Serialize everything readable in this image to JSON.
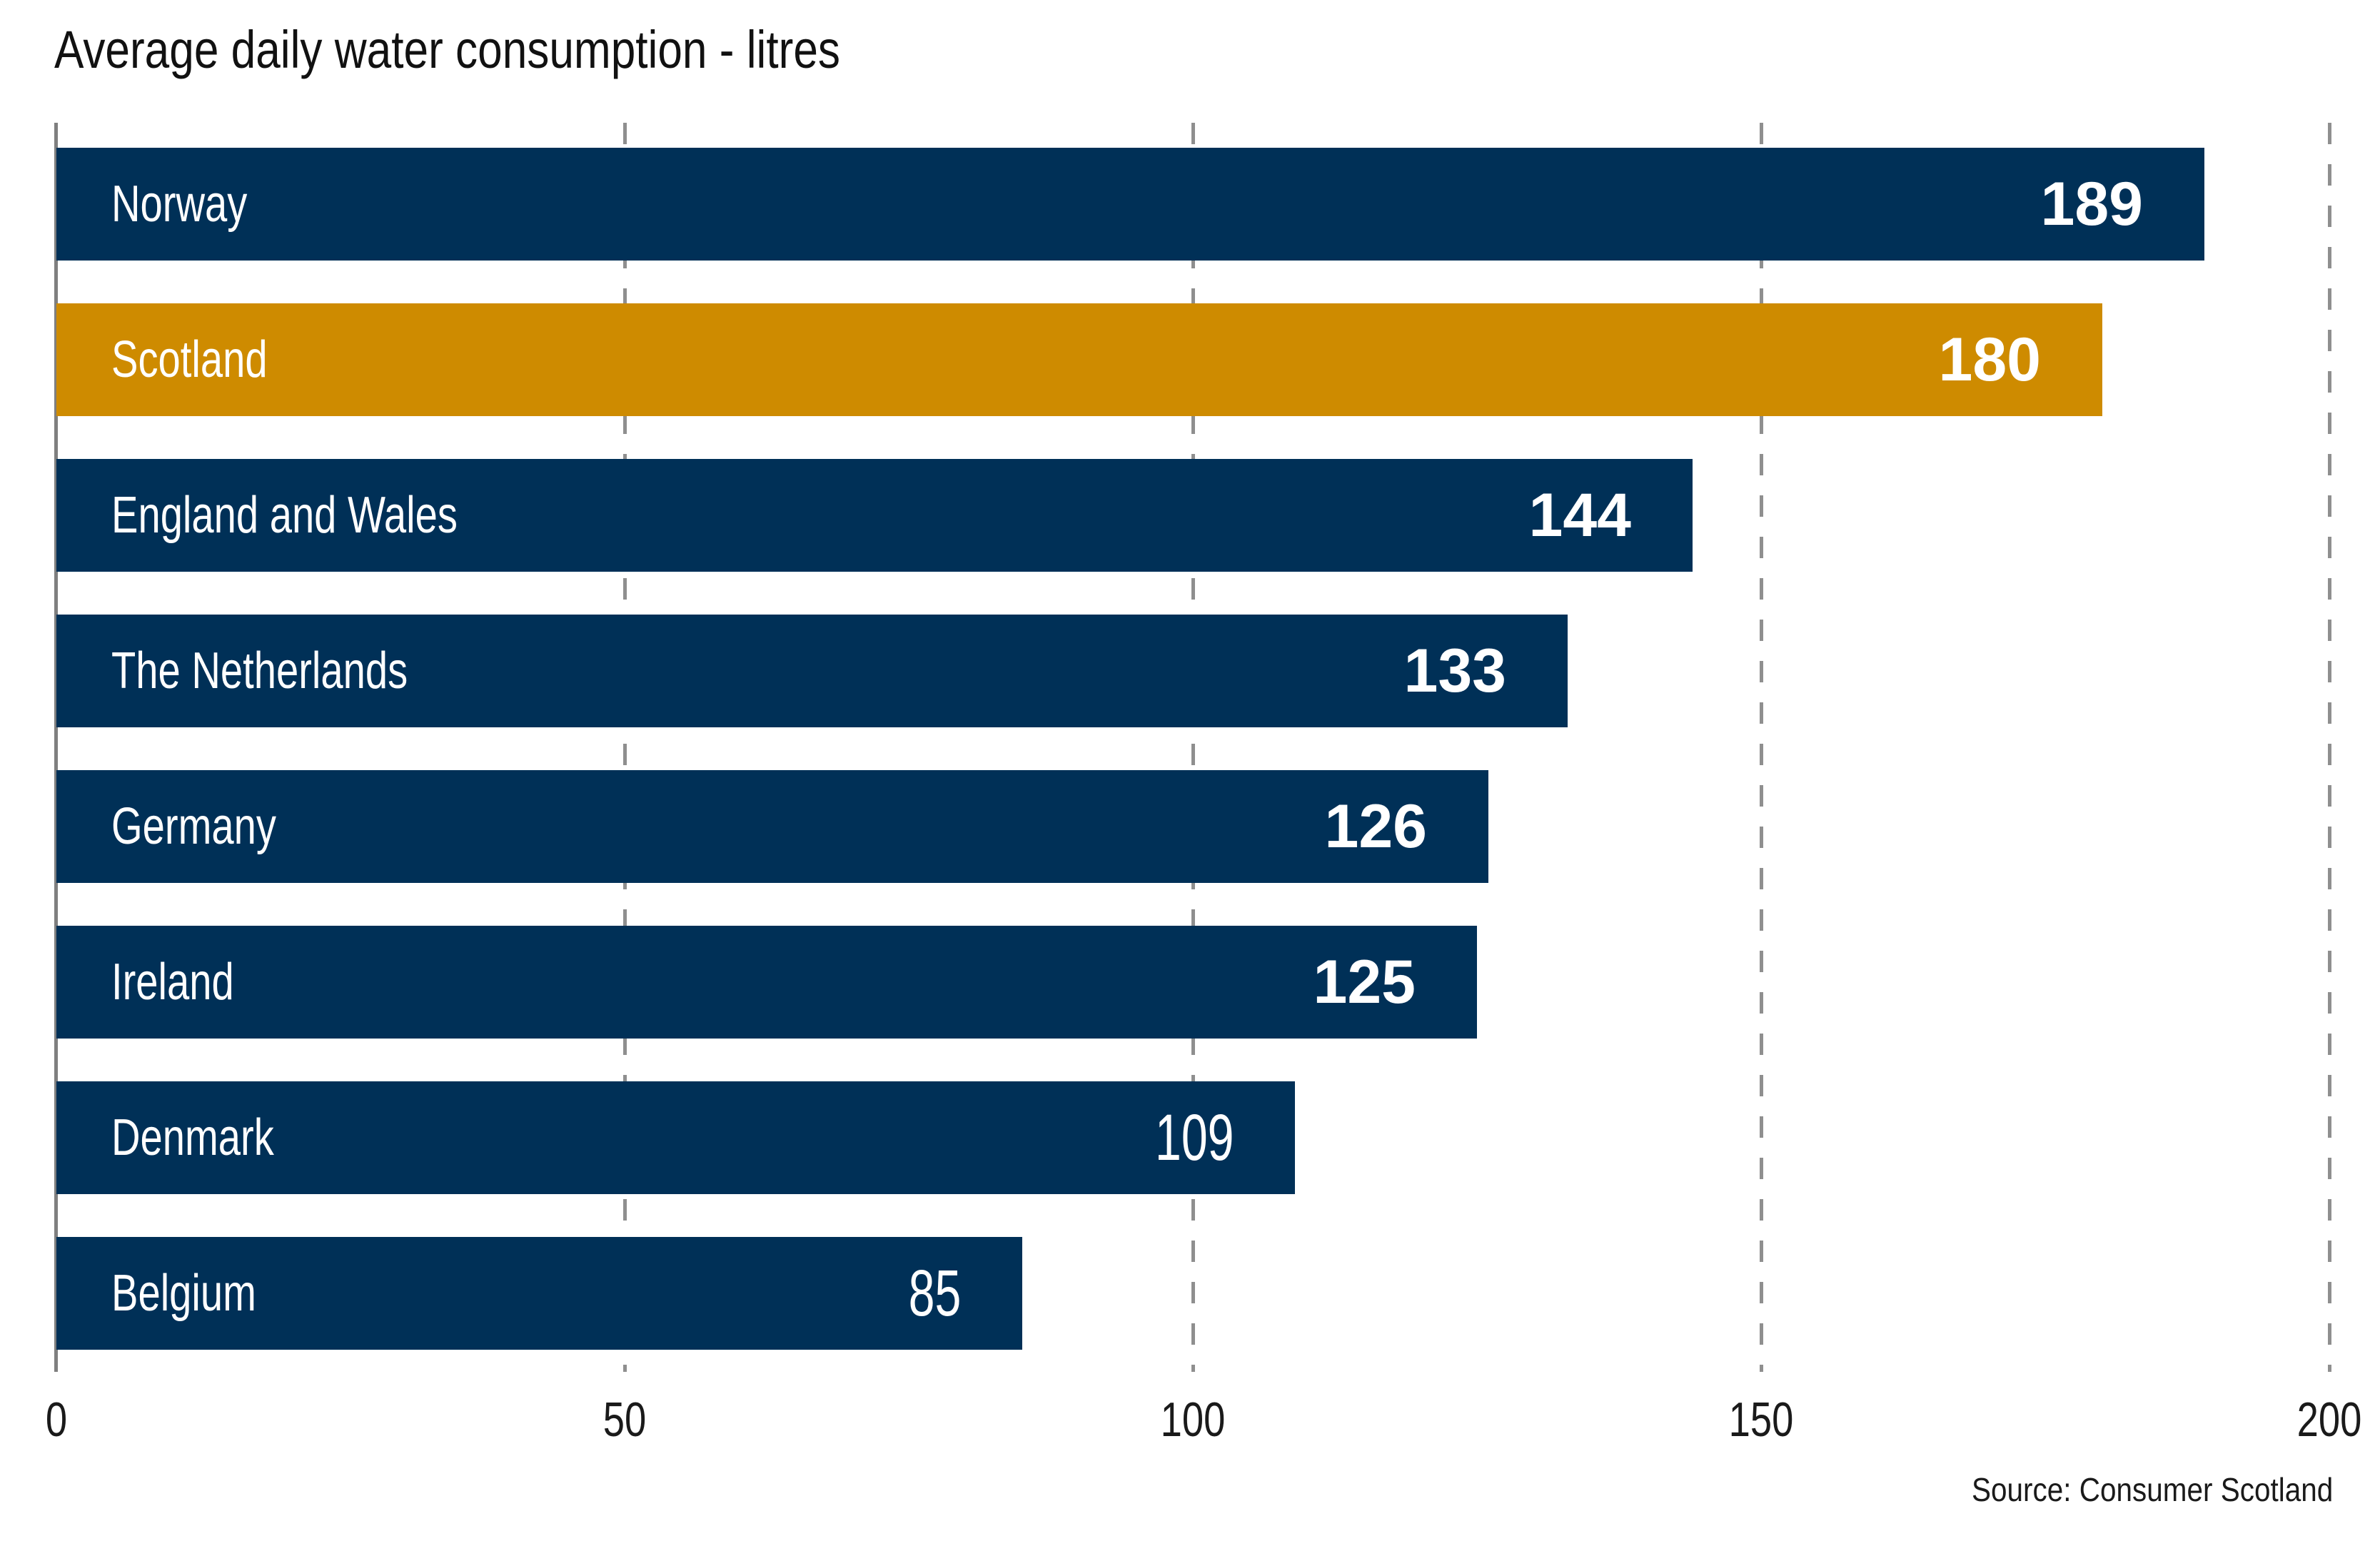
{
  "title": "Average daily water consumption - litres",
  "source_note": "Source: Consumer Scotland",
  "colors": {
    "bar_default": "#003057",
    "bar_highlight": "#CE8B00",
    "bar_text": "#ffffff",
    "axis_line": "#7f7f7f",
    "gridline": "#8f8f8f",
    "text": "#1a1a1a"
  },
  "chart_data": {
    "type": "bar",
    "orientation": "horizontal",
    "title": "Average daily water consumption - litres",
    "xlabel": "",
    "ylabel": "",
    "xlim": [
      0,
      200
    ],
    "xticks": [
      0,
      50,
      100,
      150,
      200
    ],
    "grid": "vertical dashed gridlines at x ticks, solid axis line at 0",
    "legend": "none",
    "categories": [
      "Norway",
      "Scotland",
      "England and Wales",
      "The Netherlands",
      "Germany",
      "Ireland",
      "Denmark",
      "Belgium"
    ],
    "values": [
      189,
      180,
      144,
      133,
      126,
      125,
      109,
      85
    ],
    "highlight_category": "Scotland",
    "bars": [
      {
        "label": "Norway",
        "value": 189,
        "highlight": false,
        "value_weight": "bold"
      },
      {
        "label": "Scotland",
        "value": 180,
        "highlight": true,
        "value_weight": "bold"
      },
      {
        "label": "England and Wales",
        "value": 144,
        "highlight": false,
        "value_weight": "bold"
      },
      {
        "label": "The Netherlands",
        "value": 133,
        "highlight": false,
        "value_weight": "bold"
      },
      {
        "label": "Germany",
        "value": 126,
        "highlight": false,
        "value_weight": "bold"
      },
      {
        "label": "Ireland",
        "value": 125,
        "highlight": false,
        "value_weight": "bold"
      },
      {
        "label": "Denmark",
        "value": 109,
        "highlight": false,
        "value_weight": "light"
      },
      {
        "label": "Belgium",
        "value": 85,
        "highlight": false,
        "value_weight": "light"
      }
    ]
  }
}
